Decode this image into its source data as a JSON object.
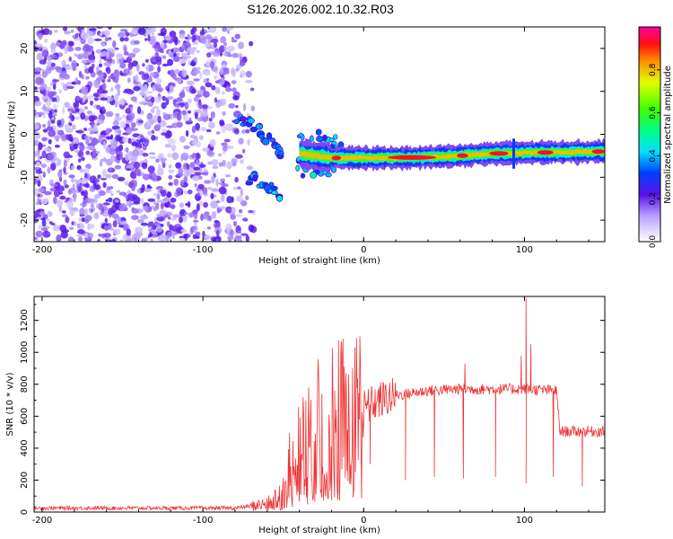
{
  "title": "S126.2026.002.10.32.R03",
  "chart_data": [
    {
      "type": "heatmap",
      "name": "spectrogram",
      "xlabel": "Height of straight line (km)",
      "ylabel": "Frequency (Hz)",
      "xlim": [
        -205,
        150
      ],
      "ylim": [
        -25,
        25
      ],
      "xticks": [
        -200,
        -100,
        0,
        100
      ],
      "yticks": [
        -20,
        -10,
        0,
        10,
        20
      ],
      "xtick_labels": [
        "-200",
        "-100",
        "0",
        "100"
      ],
      "ytick_labels": [
        "-20",
        "-10",
        "0",
        "10",
        "20"
      ],
      "colorbar": {
        "label": "Normalized spectral amplitude",
        "range": [
          0,
          1
        ],
        "ticks": [
          0.0,
          0.2,
          0.4,
          0.6,
          0.8
        ],
        "tick_labels": [
          "0.0",
          "0.2",
          "0.4",
          "0.6",
          "0.8"
        ]
      },
      "features": [
        {
          "name": "noise-region",
          "x_range": [
            -205,
            -68
          ],
          "y_range": [
            -25,
            25
          ],
          "amplitude": 0.15
        },
        {
          "name": "upper-branch",
          "points": [
            [
              -78,
              3.5
            ],
            [
              -70,
              2.5
            ],
            [
              -62,
              0
            ],
            [
              -55,
              -2.5
            ],
            [
              -50,
              -5
            ]
          ],
          "amplitude": 0.3
        },
        {
          "name": "lower-branch",
          "points": [
            [
              -72,
              -10
            ],
            [
              -65,
              -11
            ],
            [
              -58,
              -12.5
            ],
            [
              -52,
              -14
            ]
          ],
          "amplitude": 0.35
        },
        {
          "name": "carrier-line",
          "points": [
            [
              -40,
              -4.5
            ],
            [
              -20,
              -5.5
            ],
            [
              0,
              -5.5
            ],
            [
              20,
              -5.5
            ],
            [
              40,
              -5.3
            ],
            [
              60,
              -5
            ],
            [
              80,
              -4.5
            ],
            [
              100,
              -4.3
            ],
            [
              120,
              -4.2
            ],
            [
              150,
              -4
            ]
          ],
          "amplitude": 0.85
        }
      ]
    },
    {
      "type": "line",
      "name": "snr",
      "xlabel": "Height of straight line (km)",
      "ylabel": "SNR (10 * v/v)",
      "xlim": [
        -205,
        150
      ],
      "ylim": [
        0,
        1350
      ],
      "xticks": [
        -200,
        -100,
        0,
        100
      ],
      "yticks": [
        0,
        200,
        400,
        600,
        800,
        1000,
        1200
      ],
      "xtick_labels": [
        "-200",
        "-100",
        "0",
        "100"
      ],
      "ytick_labels": [
        "0",
        "200",
        "400",
        "600",
        "800",
        "1000",
        "1200"
      ],
      "color": "#ee3333",
      "baseline": [
        [
          -205,
          25
        ],
        [
          -80,
          25
        ],
        [
          -60,
          50
        ],
        [
          -50,
          120
        ],
        [
          -45,
          300
        ],
        [
          -38,
          400
        ],
        [
          -30,
          500
        ],
        [
          -20,
          560
        ],
        [
          -10,
          600
        ],
        [
          0,
          650
        ],
        [
          10,
          700
        ],
        [
          20,
          730
        ],
        [
          40,
          760
        ],
        [
          60,
          770
        ],
        [
          80,
          770
        ],
        [
          100,
          770
        ],
        [
          120,
          760
        ],
        [
          122,
          505
        ],
        [
          150,
          505
        ]
      ],
      "dropouts": [
        [
          4,
          300
        ],
        [
          26,
          200
        ],
        [
          44,
          220
        ],
        [
          62,
          210
        ],
        [
          82,
          220
        ],
        [
          101,
          180
        ],
        [
          118,
          220
        ],
        [
          136,
          160
        ]
      ],
      "spikes": [
        [
          -26,
          740
        ],
        [
          -18,
          760
        ],
        [
          63,
          930
        ],
        [
          101,
          1340
        ],
        [
          104,
          1050
        ],
        [
          98,
          980
        ]
      ]
    }
  ]
}
